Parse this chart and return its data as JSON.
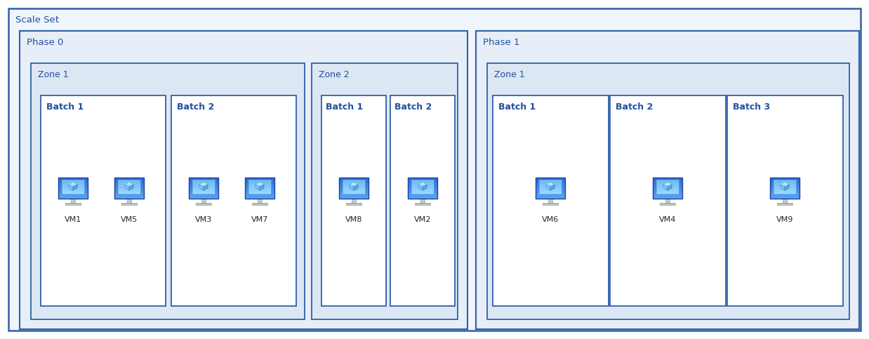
{
  "bg_color": "#ffffff",
  "border_color": "#3060a8",
  "text_color": "#2050a0",
  "fill_scaleset": "#f0f4fc",
  "fill_phase": "#e8eef8",
  "fill_zone": "#dce6f4",
  "fill_batch": "#ffffff",
  "scale_set_label": "Scale Set",
  "phase0_label": "Phase 0",
  "phase1_label": "Phase 1",
  "zone1_label": "Zone 1",
  "zone2_label": "Zone 2",
  "zone1_p1_label": "Zone 1",
  "batch_labels_phase0_zone1": [
    "Batch 1",
    "Batch 2"
  ],
  "batch_labels_phase0_zone2": [
    "Batch 1",
    "Batch 2"
  ],
  "batch_labels_phase1_zone1": [
    "Batch 1",
    "Batch 2",
    "Batch 3"
  ],
  "vms_p0z1b1": [
    [
      "VM1",
      0
    ],
    [
      "VM5",
      1
    ]
  ],
  "vms_p0z1b2": [
    [
      "VM3",
      0
    ],
    [
      "VM7",
      1
    ]
  ],
  "vms_p0z2b1": [
    [
      "VM8",
      0
    ]
  ],
  "vms_p0z2b2": [
    [
      "VM2",
      0
    ]
  ],
  "vms_p1z1b1": [
    [
      "VM6",
      0
    ]
  ],
  "vms_p1z1b2": [
    [
      "VM4",
      0
    ]
  ],
  "vms_p1z1b3": [
    [
      "VM9",
      0
    ]
  ],
  "fig_width": 12.38,
  "fig_height": 4.83,
  "dpi": 100
}
